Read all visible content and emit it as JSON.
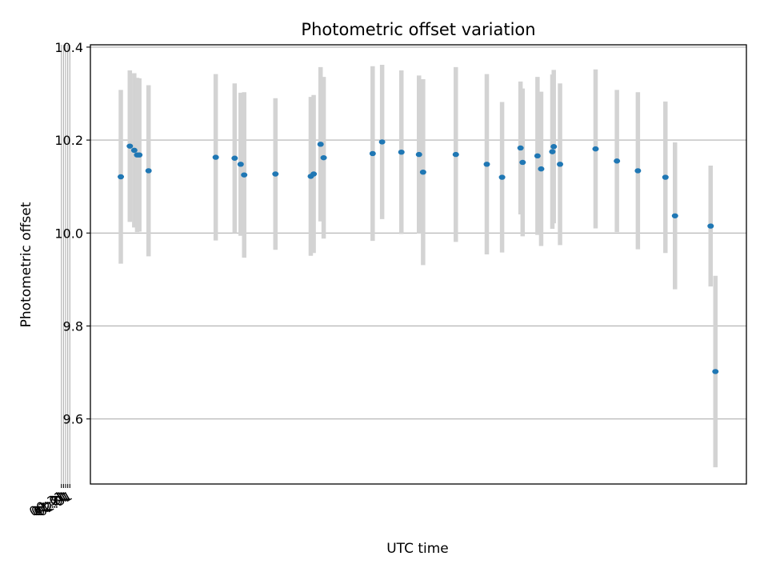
{
  "chart_data": {
    "type": "scatter",
    "title": "Photometric offset variation",
    "xlabel": "UTC time",
    "ylabel": "Photometric offset",
    "x_tick_labels": [
      "00:31",
      "01:01",
      "01:31",
      "02:01",
      "02:31"
    ],
    "x_tick_values": [
      "00:31",
      "01:01",
      "01:31",
      "02:01",
      "02:31"
    ],
    "x_range": [
      "00:07:23",
      "02:42:40"
    ],
    "ylim": [
      9.46,
      10.405
    ],
    "y_ticks": [
      9.6,
      9.8,
      10.0,
      10.2,
      10.4
    ],
    "y_tick_labels": [
      "9.6",
      "9.8",
      "10.0",
      "10.2",
      "10.4"
    ],
    "grid": true,
    "point_color": "#1f77b4",
    "errorbar_color": "#d3d3d3",
    "points": [
      {
        "x": "00:14:35",
        "y": 10.121,
        "err": 0.187
      },
      {
        "x": "00:16:43",
        "y": 10.187,
        "err": 0.163
      },
      {
        "x": "00:17:46",
        "y": 10.178,
        "err": 0.166
      },
      {
        "x": "00:18:27",
        "y": 10.168,
        "err": 0.166
      },
      {
        "x": "00:18:58",
        "y": 10.168,
        "err": 0.165
      },
      {
        "x": "00:21:09",
        "y": 10.134,
        "err": 0.184
      },
      {
        "x": "00:37:03",
        "y": 10.163,
        "err": 0.179
      },
      {
        "x": "00:41:32",
        "y": 10.161,
        "err": 0.161
      },
      {
        "x": "00:42:57",
        "y": 10.148,
        "err": 0.154
      },
      {
        "x": "00:43:47",
        "y": 10.125,
        "err": 0.178
      },
      {
        "x": "00:51:11",
        "y": 10.127,
        "err": 0.163
      },
      {
        "x": "00:59:33",
        "y": 10.122,
        "err": 0.171
      },
      {
        "x": "01:00:14",
        "y": 10.127,
        "err": 0.17
      },
      {
        "x": "01:01:52",
        "y": 10.191,
        "err": 0.166
      },
      {
        "x": "01:02:36",
        "y": 10.162,
        "err": 0.174
      },
      {
        "x": "01:14:12",
        "y": 10.171,
        "err": 0.188
      },
      {
        "x": "01:16:26",
        "y": 10.196,
        "err": 0.166
      },
      {
        "x": "01:21:00",
        "y": 10.174,
        "err": 0.176
      },
      {
        "x": "01:25:10",
        "y": 10.169,
        "err": 0.17
      },
      {
        "x": "01:26:08",
        "y": 10.131,
        "err": 0.2
      },
      {
        "x": "01:33:53",
        "y": 10.169,
        "err": 0.188
      },
      {
        "x": "01:41:13",
        "y": 10.148,
        "err": 0.194
      },
      {
        "x": "01:44:50",
        "y": 10.12,
        "err": 0.162
      },
      {
        "x": "01:49:12",
        "y": 10.183,
        "err": 0.143
      },
      {
        "x": "01:49:42",
        "y": 10.152,
        "err": 0.159
      },
      {
        "x": "01:53:13",
        "y": 10.166,
        "err": 0.17
      },
      {
        "x": "01:54:05",
        "y": 10.138,
        "err": 0.166
      },
      {
        "x": "01:56:44",
        "y": 10.175,
        "err": 0.166
      },
      {
        "x": "01:57:04",
        "y": 10.186,
        "err": 0.165
      },
      {
        "x": "01:58:33",
        "y": 10.148,
        "err": 0.174
      },
      {
        "x": "02:06:58",
        "y": 10.181,
        "err": 0.171
      },
      {
        "x": "02:12:01",
        "y": 10.155,
        "err": 0.153
      },
      {
        "x": "02:16:59",
        "y": 10.134,
        "err": 0.169
      },
      {
        "x": "02:23:30",
        "y": 10.12,
        "err": 0.163
      },
      {
        "x": "02:25:46",
        "y": 10.037,
        "err": 0.158
      },
      {
        "x": "02:34:12",
        "y": 10.015,
        "err": 0.13
      },
      {
        "x": "02:35:20",
        "y": 9.702,
        "err": 0.206
      }
    ]
  }
}
